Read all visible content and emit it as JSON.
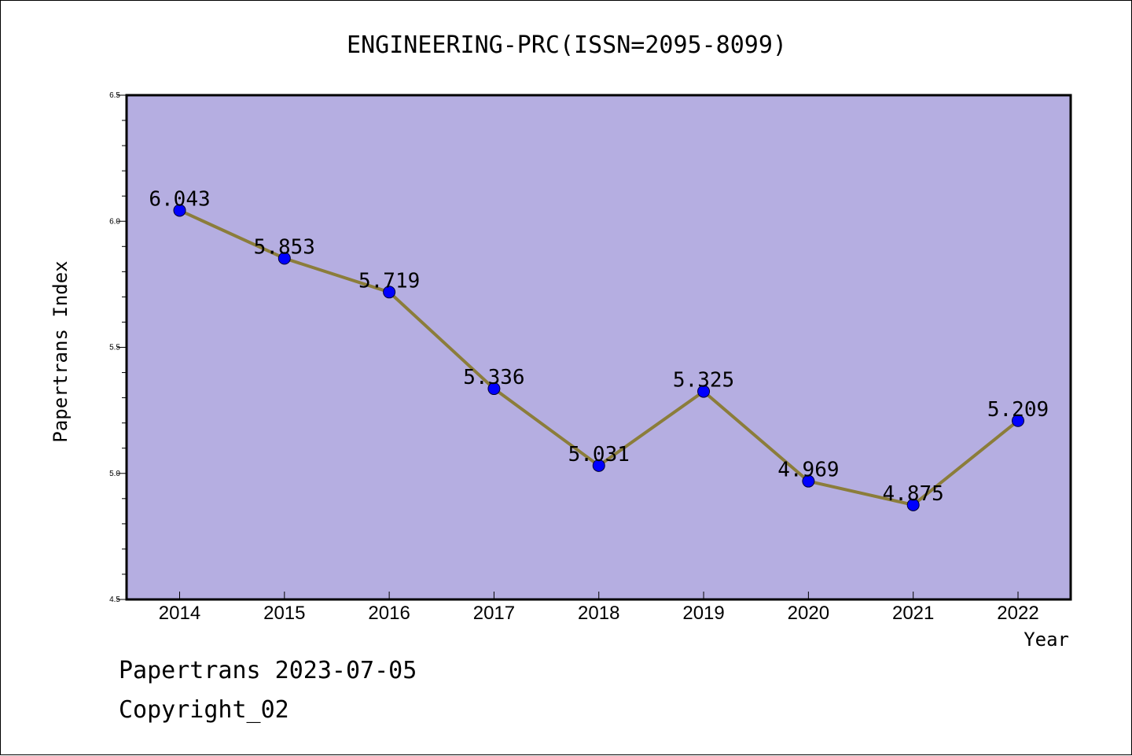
{
  "chart_data": {
    "type": "line",
    "title": "ENGINEERING-PRC(ISSN=2095-8099)",
    "xlabel": "Year",
    "ylabel": "Papertrans Index",
    "categories": [
      "2014",
      "2015",
      "2016",
      "2017",
      "2018",
      "2019",
      "2020",
      "2021",
      "2022"
    ],
    "series": [
      {
        "values": [
          6.043,
          5.853,
          5.719,
          5.336,
          5.031,
          5.325,
          4.969,
          4.875,
          5.209
        ],
        "labels": [
          "6.043",
          "5.853",
          "5.719",
          "5.336",
          "5.031",
          "5.325",
          "4.969",
          "4.875",
          "5.209"
        ]
      }
    ],
    "ylim": [
      4.5,
      6.5
    ],
    "yticks": [
      "4.5",
      "5.0",
      "5.5",
      "6.0",
      "6.5"
    ],
    "grid": false,
    "colors": {
      "plot_background": "#b5aee1",
      "line": "#8b7d3a",
      "marker": "#0000ff"
    }
  },
  "footer": {
    "date_line": "Papertrans 2023-07-05",
    "copyright_line": "Copyright_02"
  }
}
